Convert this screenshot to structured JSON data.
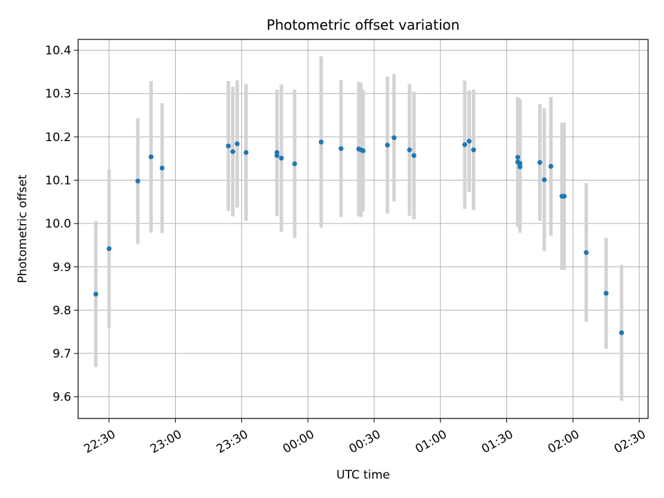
{
  "chart_data": {
    "type": "scatter",
    "title": "Photometric offset variation",
    "xlabel": "UTC time",
    "ylabel": "Photometric offset",
    "grid": true,
    "xlim": [
      "22:16",
      "02:34"
    ],
    "ylim": [
      9.55,
      10.425
    ],
    "x_ticks": [
      "22:30",
      "23:00",
      "23:30",
      "00:00",
      "00:30",
      "01:00",
      "01:30",
      "02:00",
      "02:30"
    ],
    "y_ticks": [
      "9.6",
      "9.7",
      "9.8",
      "9.9",
      "10.0",
      "10.1",
      "10.2",
      "10.3",
      "10.4"
    ],
    "colors": {
      "points": "#1f77b4",
      "errorbars": "#d3d3d3",
      "grid": "#b0b0b0"
    },
    "series": [
      {
        "x": [
          "22:24",
          "22:30",
          "22:43",
          "22:49",
          "22:54",
          "23:24",
          "23:26",
          "23:28",
          "23:32",
          "23:46",
          "23:46",
          "23:48",
          "23:54",
          "00:06",
          "00:15",
          "00:23",
          "00:24",
          "00:25",
          "00:36",
          "00:39",
          "00:46",
          "00:48",
          "01:11",
          "01:13",
          "01:15",
          "01:35",
          "01:35",
          "01:36",
          "01:36",
          "01:45",
          "01:47",
          "01:50",
          "01:55",
          "01:56",
          "02:06",
          "02:15",
          "02:22"
        ],
        "y": [
          9.837,
          9.942,
          10.098,
          10.154,
          10.128,
          10.179,
          10.166,
          10.184,
          10.164,
          10.157,
          10.164,
          10.151,
          10.138,
          10.188,
          10.173,
          10.172,
          10.17,
          10.168,
          10.181,
          10.198,
          10.17,
          10.157,
          10.182,
          10.19,
          10.17,
          10.142,
          10.153,
          10.139,
          10.131,
          10.141,
          10.101,
          10.132,
          10.063,
          10.063,
          9.933,
          9.839,
          9.748
        ],
        "err": [
          0.168,
          0.183,
          0.145,
          0.175,
          0.15,
          0.15,
          0.15,
          0.147,
          0.158,
          0.14,
          0.145,
          0.17,
          0.171,
          0.198,
          0.158,
          0.155,
          0.155,
          0.14,
          0.158,
          0.147,
          0.152,
          0.147,
          0.148,
          0.117,
          0.139,
          0.15,
          0.138,
          0.148,
          0.152,
          0.135,
          0.165,
          0.16,
          0.17,
          0.17,
          0.16,
          0.128,
          0.157
        ]
      }
    ]
  }
}
